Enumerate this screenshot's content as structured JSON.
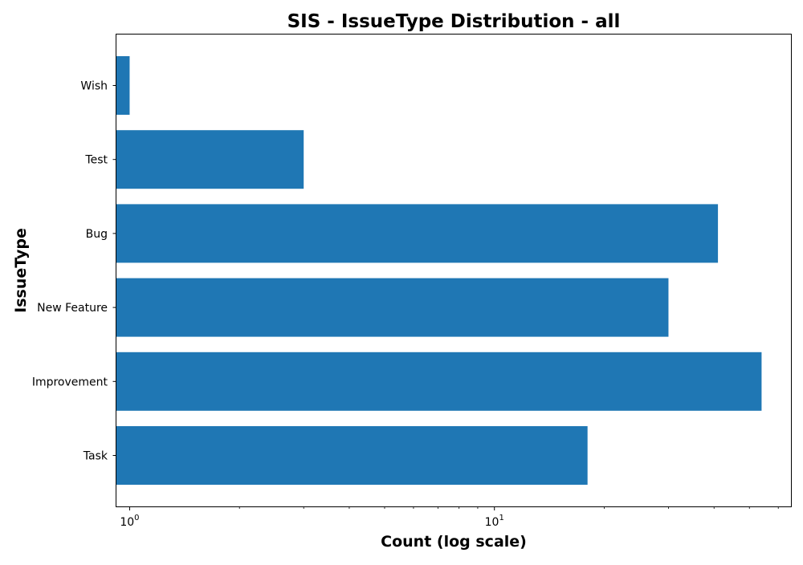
{
  "chart_data": {
    "type": "bar",
    "orientation": "horizontal",
    "title": "SIS - IssueType Distribution - all",
    "xlabel": "Count (log scale)",
    "ylabel": "IssueType",
    "x_scale": "log",
    "xlim": [
      0.92,
      65
    ],
    "grid": false,
    "categories": [
      "Task",
      "Improvement",
      "New Feature",
      "Bug",
      "Test",
      "Wish"
    ],
    "values": [
      18,
      54,
      30,
      41,
      3,
      1
    ],
    "x_ticks": [
      {
        "value": 1,
        "base": "10",
        "exp": "0"
      },
      {
        "value": 10,
        "base": "10",
        "exp": "1"
      }
    ],
    "colors": {
      "bar": "#1f77b4"
    }
  }
}
